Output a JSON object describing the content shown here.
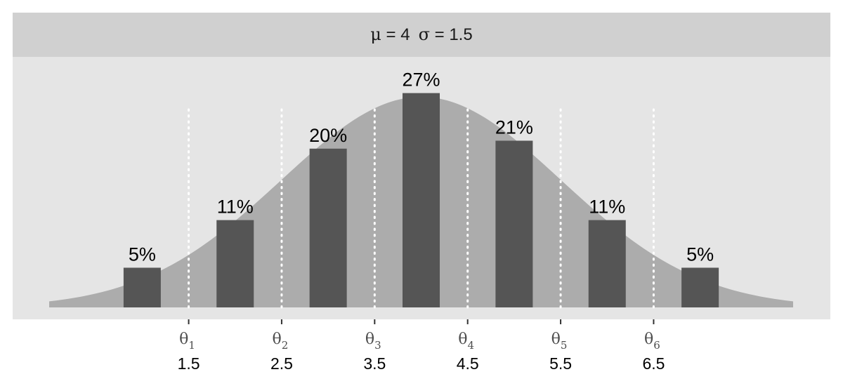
{
  "chart_data": {
    "type": "bar",
    "facet_title_parts": {
      "mu": "μ",
      "mu_eq": " = 4",
      "sigma": "σ",
      "sigma_eq": " = 1.5"
    },
    "categories": [
      "1",
      "2",
      "3",
      "4",
      "5",
      "6",
      "7"
    ],
    "values": [
      5,
      11,
      20,
      27,
      21,
      11,
      5
    ],
    "value_labels": [
      "5%",
      "11%",
      "20%",
      "27%",
      "21%",
      "11%",
      "5%"
    ],
    "ylim": [
      0,
      29
    ],
    "distribution": {
      "type": "normal",
      "mean": 4,
      "sd": 1.5
    },
    "xlim": [
      0,
      8
    ],
    "thresholds": [
      {
        "symbol": "θ",
        "sub": "1",
        "value": 1.5,
        "label": "1.5"
      },
      {
        "symbol": "θ",
        "sub": "2",
        "value": 2.5,
        "label": "2.5"
      },
      {
        "symbol": "θ",
        "sub": "3",
        "value": 3.5,
        "label": "3.5"
      },
      {
        "symbol": "θ",
        "sub": "4",
        "value": 4.5,
        "label": "4.5"
      },
      {
        "symbol": "θ",
        "sub": "5",
        "value": 5.5,
        "label": "5.5"
      },
      {
        "symbol": "θ",
        "sub": "6",
        "value": 6.5,
        "label": "6.5"
      }
    ],
    "grid": false,
    "colors": {
      "panel_background": "#e5e5e5",
      "strip_background": "#d0d0d0",
      "density_fill": "#acacac",
      "bar_fill": "#555555",
      "threshold_line": "#ffffff",
      "tick": "#333333"
    }
  }
}
